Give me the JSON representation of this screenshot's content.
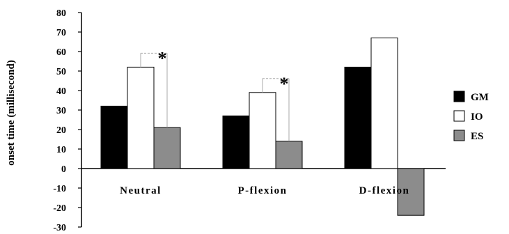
{
  "chart_data": {
    "type": "bar",
    "title": "",
    "xlabel": "",
    "ylabel": "onset time (millisecond)",
    "ylim": [
      -30,
      80
    ],
    "yticks": [
      80,
      70,
      60,
      50,
      40,
      30,
      20,
      10,
      0,
      -10,
      -20,
      -30
    ],
    "grid": false,
    "legend_position": "right",
    "categories": [
      "Neutral",
      "P-flexion",
      "D-flexion"
    ],
    "series": [
      {
        "name": "GM",
        "values": [
          32,
          27,
          52
        ],
        "color": "#000000"
      },
      {
        "name": "IO",
        "values": [
          52,
          39,
          67
        ],
        "color": "#ffffff"
      },
      {
        "name": "ES",
        "values": [
          21,
          14,
          -24
        ],
        "color": "#8c8c8c"
      }
    ],
    "annotations": [
      {
        "text": "*",
        "category": "Neutral",
        "from_series": "IO",
        "to_series": "ES"
      },
      {
        "text": "*",
        "category": "P-flexion",
        "from_series": "IO",
        "to_series": "ES"
      }
    ]
  }
}
